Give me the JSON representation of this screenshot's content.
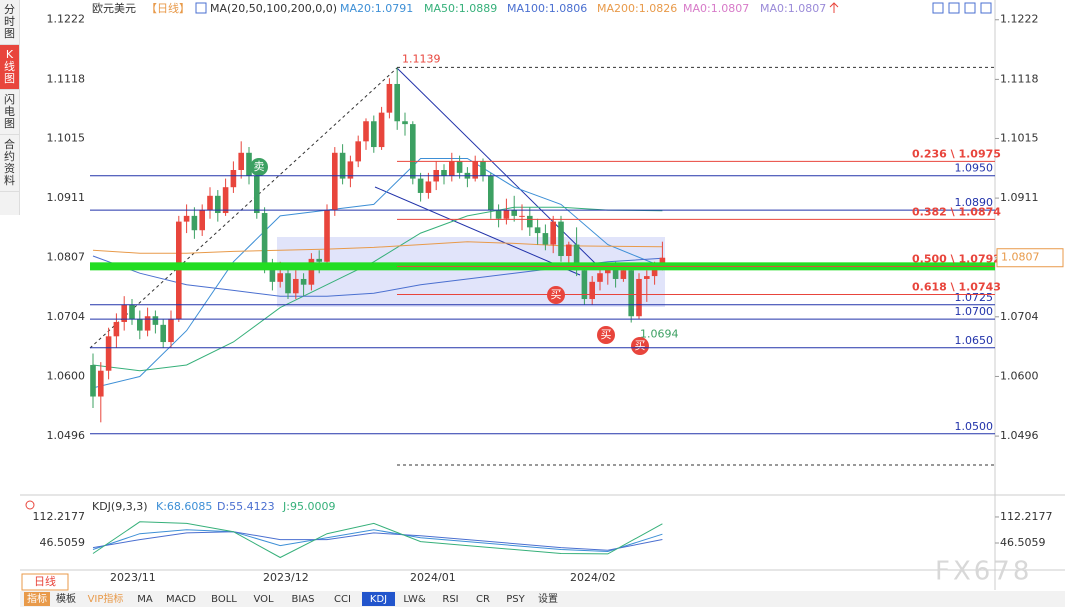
{
  "sidebar": {
    "tabs": [
      "分时图",
      "K线图",
      "闪电图",
      "合约资料"
    ]
  },
  "header": {
    "symbol": "欧元美元",
    "period": "【日线】",
    "ma_params": "MA(20,50,100,200,0,0)",
    "legend": [
      {
        "text": "MA20:1.0791",
        "color": "#3d8fd6"
      },
      {
        "text": "MA50:1.0889",
        "color": "#36b07a"
      },
      {
        "text": "MA100:1.0806",
        "color": "#4a6fd0"
      },
      {
        "text": "MA200:1.0826",
        "color": "#e89a4a"
      },
      {
        "text": "MA0:1.0807",
        "color": "#d77ac8"
      },
      {
        "text": "MA0:1.0807",
        "color": "#9a8ad8"
      }
    ]
  },
  "chart_data": {
    "type": "candlestick",
    "up_color": "#e8453c",
    "down_color": "#3ca062",
    "ylim": [
      1.0402,
      1.1239
    ],
    "yticks": [
      1.1222,
      1.1118,
      1.1015,
      1.0911,
      1.0807,
      1.0704,
      {
        "value": 1.06,
        "label": "1.0600"
      },
      1.0496
    ],
    "ohlc": [
      [
        1.062,
        1.064,
        1.0545,
        1.0565
      ],
      [
        1.0565,
        1.0625,
        1.052,
        1.061
      ],
      [
        1.061,
        1.0685,
        1.0595,
        1.067
      ],
      [
        1.067,
        1.071,
        1.065,
        1.0695
      ],
      [
        1.0695,
        1.074,
        1.068,
        1.0725
      ],
      [
        1.0725,
        1.0735,
        1.069,
        1.07
      ],
      [
        1.07,
        1.0715,
        1.0665,
        1.068
      ],
      [
        1.068,
        1.072,
        1.067,
        1.0705
      ],
      [
        1.0705,
        1.0715,
        1.0675,
        1.069
      ],
      [
        1.069,
        1.07,
        1.065,
        1.066
      ],
      [
        1.066,
        1.0715,
        1.065,
        1.07
      ],
      [
        1.07,
        1.088,
        1.0695,
        1.087
      ],
      [
        1.087,
        1.09,
        1.085,
        1.088
      ],
      [
        1.088,
        1.0895,
        1.084,
        1.0855
      ],
      [
        1.0855,
        1.09,
        1.0845,
        1.089
      ],
      [
        1.089,
        1.093,
        1.0875,
        1.0915
      ],
      [
        1.0915,
        1.0925,
        1.087,
        1.0885
      ],
      [
        1.0885,
        1.0945,
        1.088,
        1.093
      ],
      [
        1.093,
        1.0975,
        1.092,
        1.096
      ],
      [
        1.096,
        1.101,
        1.0945,
        1.099
      ],
      [
        1.099,
        1.1,
        1.0935,
        1.095
      ],
      [
        1.095,
        1.096,
        1.0875,
        1.0885
      ],
      [
        1.0885,
        1.0895,
        1.078,
        1.079
      ],
      [
        1.079,
        1.0805,
        1.075,
        1.0765
      ],
      [
        1.0765,
        1.08,
        1.0755,
        1.078
      ],
      [
        1.078,
        1.079,
        1.0735,
        1.0745
      ],
      [
        1.0745,
        1.0785,
        1.0735,
        1.077
      ],
      [
        1.077,
        1.078,
        1.074,
        1.076
      ],
      [
        1.076,
        1.0815,
        1.075,
        1.0805
      ],
      [
        1.0805,
        1.082,
        1.078,
        1.08
      ],
      [
        1.08,
        1.09,
        1.079,
        1.089
      ],
      [
        1.089,
        1.1,
        1.088,
        1.099
      ],
      [
        1.099,
        1.1005,
        1.0935,
        1.0945
      ],
      [
        1.0945,
        1.0985,
        1.093,
        1.0975
      ],
      [
        1.0975,
        1.102,
        1.0965,
        1.101
      ],
      [
        1.101,
        1.105,
        1.0995,
        1.1045
      ],
      [
        1.1045,
        1.1055,
        1.099,
        1.1
      ],
      [
        1.1,
        1.107,
        1.0995,
        1.106
      ],
      [
        1.106,
        1.112,
        1.105,
        1.111
      ],
      [
        1.111,
        1.1139,
        1.103,
        1.1045
      ],
      [
        1.1045,
        1.106,
        1.102,
        1.104
      ],
      [
        1.104,
        1.1045,
        1.0935,
        1.0945
      ],
      [
        1.0945,
        1.0955,
        1.0905,
        1.092
      ],
      [
        1.092,
        1.0955,
        1.091,
        1.094
      ],
      [
        1.094,
        1.0975,
        1.0925,
        1.096
      ],
      [
        1.096,
        1.097,
        1.0935,
        1.095
      ],
      [
        1.095,
        1.099,
        1.094,
        1.0975
      ],
      [
        1.0975,
        1.0985,
        1.0945,
        1.0955
      ],
      [
        1.0955,
        1.0965,
        1.093,
        1.0945
      ],
      [
        1.0945,
        1.0985,
        1.094,
        1.0975
      ],
      [
        1.0975,
        1.098,
        1.094,
        1.095
      ],
      [
        1.095,
        1.0955,
        1.0875,
        1.089
      ],
      [
        1.089,
        1.09,
        1.086,
        1.0875
      ],
      [
        1.0875,
        1.091,
        1.0865,
        1.089
      ],
      [
        1.089,
        1.0915,
        1.087,
        1.088
      ],
      [
        1.088,
        1.09,
        1.0855,
        1.088
      ],
      [
        1.088,
        1.0895,
        1.0845,
        1.086
      ],
      [
        1.086,
        1.0875,
        1.083,
        1.085
      ],
      [
        1.085,
        1.0865,
        1.082,
        1.083
      ],
      [
        1.083,
        1.088,
        1.0815,
        1.087
      ],
      [
        1.087,
        1.088,
        1.08,
        1.081
      ],
      [
        1.081,
        1.0835,
        1.0795,
        1.083
      ],
      [
        1.083,
        1.086,
        1.0775,
        1.0785
      ],
      [
        1.0785,
        1.079,
        1.0725,
        1.0735
      ],
      [
        1.0735,
        1.0775,
        1.0725,
        1.0765
      ],
      [
        1.0765,
        1.079,
        1.075,
        1.078
      ],
      [
        1.078,
        1.0795,
        1.076,
        1.079
      ],
      [
        1.079,
        1.08,
        1.0755,
        1.077
      ],
      [
        1.077,
        1.0795,
        1.0765,
        1.0785
      ],
      [
        1.0785,
        1.079,
        1.0694,
        1.0705
      ],
      [
        1.0705,
        1.078,
        1.07,
        1.077
      ],
      [
        1.077,
        1.0785,
        1.073,
        1.0775
      ],
      [
        1.0775,
        1.08,
        1.076,
        1.079
      ],
      [
        1.079,
        1.0835,
        1.0785,
        1.0807
      ]
    ],
    "ma_lines": [
      {
        "color": "#3d8fd6",
        "x": [
          0,
          6,
          12,
          18,
          24,
          30,
          36,
          42,
          48,
          54,
          60,
          66,
          73
        ],
        "values": [
          1.058,
          1.06,
          1.068,
          1.08,
          1.088,
          1.089,
          1.09,
          1.098,
          1.098,
          1.093,
          1.09,
          1.083,
          1.0791
        ]
      },
      {
        "color": "#36b07a",
        "x": [
          0,
          6,
          12,
          18,
          24,
          30,
          36,
          42,
          48,
          54,
          60,
          66,
          73
        ],
        "values": [
          1.062,
          1.061,
          1.062,
          1.066,
          1.072,
          1.076,
          1.08,
          1.085,
          1.088,
          1.0895,
          1.0895,
          1.089,
          1.0889
        ]
      },
      {
        "color": "#4a6fd0",
        "x": [
          0,
          6,
          12,
          18,
          24,
          30,
          36,
          42,
          48,
          54,
          60,
          66,
          73
        ],
        "values": [
          1.081,
          1.078,
          1.076,
          1.075,
          1.074,
          1.074,
          1.0745,
          1.076,
          1.077,
          1.078,
          1.079,
          1.08,
          1.0806
        ]
      },
      {
        "color": "#e89a4a",
        "x": [
          0,
          6,
          12,
          18,
          24,
          30,
          36,
          42,
          48,
          54,
          60,
          66,
          73
        ],
        "values": [
          1.082,
          1.0815,
          1.0815,
          1.0818,
          1.082,
          1.0822,
          1.0825,
          1.083,
          1.0835,
          1.0832,
          1.0828,
          1.0827,
          1.0826
        ]
      }
    ],
    "support_levels": [
      {
        "value": 1.095,
        "label": "1.0950"
      },
      {
        "value": 1.089,
        "label": "1.0890"
      },
      {
        "value": 1.0725,
        "label": "1.0725"
      },
      {
        "value": 1.07,
        "label": "1.0700"
      },
      {
        "value": 1.065,
        "label": "1.0650"
      },
      {
        "value": 1.05,
        "label": "1.0500"
      }
    ],
    "fib_levels": [
      {
        "value": 1.0975,
        "label": "0.236 \\ 1.0975"
      },
      {
        "value": 1.0874,
        "label": "0.382 \\ 1.0874"
      },
      {
        "value": 1.0792,
        "label": "0.500 \\ 1.0792"
      },
      {
        "value": 1.0743,
        "label": "0.618 \\ 1.0743"
      }
    ],
    "high": 1.1139,
    "low": 1.0694,
    "last_price": 1.0807,
    "signals": [
      "卖",
      "买",
      "买",
      "买"
    ],
    "x_labels": [
      "2023/11",
      "2023/12",
      "2024/01",
      "2024/02"
    ]
  },
  "kdj": {
    "title": "KDJ(9,3,3)",
    "k_label": "K:68.6085",
    "d_label": "D:55.4123",
    "j_label": "J:95.0009",
    "ylim": [
      -9,
      155
    ],
    "yticks": [
      112.2177,
      46.5059
    ],
    "series": [
      {
        "color": "#3d8fd6",
        "x": [
          0,
          6,
          12,
          18,
          24,
          30,
          36,
          42,
          48,
          54,
          60,
          66,
          73
        ],
        "values": [
          30,
          70,
          80,
          75,
          40,
          60,
          80,
          60,
          50,
          40,
          30,
          25,
          68.6085
        ]
      },
      {
        "color": "#4a6fd0",
        "x": [
          0,
          6,
          12,
          18,
          24,
          30,
          36,
          42,
          48,
          54,
          60,
          66,
          73
        ],
        "values": [
          35,
          55,
          72,
          75,
          55,
          55,
          72,
          65,
          55,
          45,
          35,
          28,
          55.4123
        ]
      },
      {
        "color": "#36b07a",
        "x": [
          0,
          6,
          12,
          18,
          24,
          30,
          36,
          42,
          48,
          54,
          60,
          66,
          73
        ],
        "values": [
          20,
          100,
          96,
          75,
          10,
          70,
          96,
          50,
          40,
          30,
          20,
          19,
          95.0009
        ]
      }
    ]
  },
  "toolbar": {
    "period": "日线",
    "items": [
      "指标",
      "模板",
      "VIP指标",
      "MA",
      "MACD",
      "BOLL",
      "VOL",
      "BIAS",
      "CCI",
      "KDJ",
      "LW&",
      "RSI",
      "CR",
      "PSY",
      "设置"
    ]
  },
  "watermark": "FX678"
}
